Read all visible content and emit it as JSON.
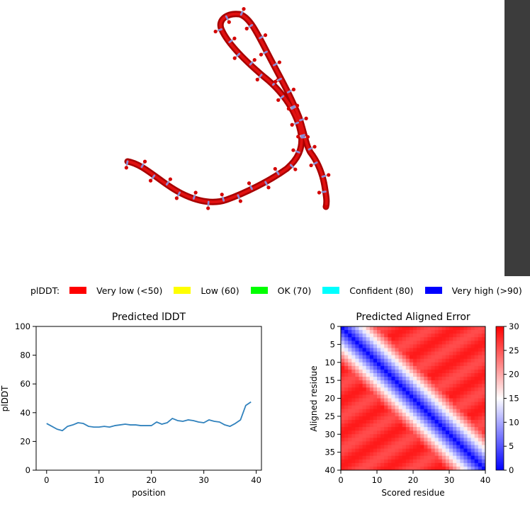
{
  "legend": {
    "title": "plDDT:",
    "items": [
      {
        "label": "Very low (<50)",
        "color": "#ff0000"
      },
      {
        "label": "Low (60)",
        "color": "#ffff00"
      },
      {
        "label": "OK (70)",
        "color": "#00ff00"
      },
      {
        "label": "Confident (80)",
        "color": "#00ffff"
      },
      {
        "label": "Very high (>90)",
        "color": "#0000ff"
      }
    ]
  },
  "chart_data": [
    {
      "type": "line",
      "title": "Predicted lDDT",
      "xlabel": "position",
      "ylabel": "plDDT",
      "xlim": [
        -2,
        41
      ],
      "ylim": [
        0,
        100
      ],
      "xticks": [
        0,
        10,
        20,
        30,
        40
      ],
      "yticks": [
        0,
        20,
        40,
        60,
        80,
        100
      ],
      "grid": false,
      "line_color": "#3182bd",
      "x": [
        0,
        1,
        2,
        3,
        4,
        5,
        6,
        7,
        8,
        9,
        10,
        11,
        12,
        13,
        14,
        15,
        16,
        17,
        18,
        19,
        20,
        21,
        22,
        23,
        24,
        25,
        26,
        27,
        28,
        29,
        30,
        31,
        32,
        33,
        34,
        35,
        36,
        37,
        38,
        39
      ],
      "y": [
        32.5,
        30.5,
        28.5,
        27.5,
        30.5,
        31.5,
        33,
        32.5,
        30.5,
        30,
        30,
        30.5,
        30,
        31,
        31.5,
        32,
        31.5,
        31.5,
        31,
        31,
        31,
        33.5,
        32,
        33,
        36,
        34.5,
        34,
        35,
        34.5,
        33.5,
        33,
        35,
        34,
        33.5,
        31.5,
        30.5,
        32.5,
        35,
        45,
        47.5
      ]
    },
    {
      "type": "heatmap",
      "title": "Predicted Aligned Error",
      "xlabel": "Scored residue",
      "ylabel": "Aligned residue",
      "xlim": [
        0,
        40
      ],
      "ylim": [
        40,
        0
      ],
      "xticks": [
        0,
        10,
        20,
        30,
        40
      ],
      "yticks": [
        0,
        5,
        10,
        15,
        20,
        25,
        30,
        35,
        40
      ],
      "colormap": "bwr",
      "colorbar_range": [
        0,
        30
      ],
      "colorbar_ticks": [
        0,
        5,
        10,
        15,
        20,
        25,
        30
      ],
      "grid_size": 40,
      "diagonal_error": 0.5,
      "error_slope_per_residue": 2.6,
      "background_error": 27
    }
  ]
}
